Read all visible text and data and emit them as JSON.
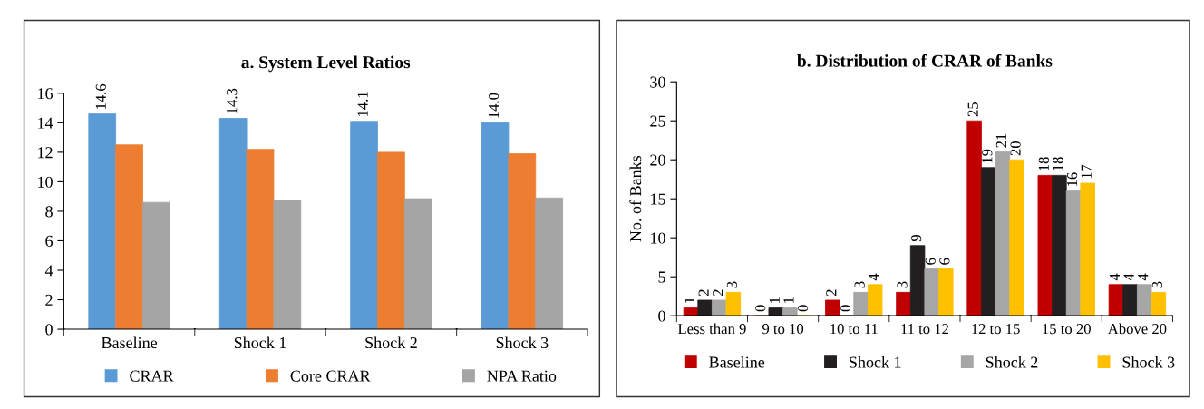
{
  "chart_data": [
    {
      "type": "bar",
      "title": "a. System Level Ratios",
      "categories": [
        "Baseline",
        "Shock 1",
        "Shock 2",
        "Shock 3"
      ],
      "ylim": [
        0,
        16
      ],
      "yticks": [
        0,
        2,
        4,
        6,
        8,
        10,
        12,
        14,
        16
      ],
      "grid": false,
      "legend": "bottom",
      "series": [
        {
          "name": "CRAR",
          "color": "#5b9bd5",
          "values": [
            14.6,
            14.3,
            14.1,
            14.0
          ],
          "value_labels": [
            "14.6",
            "14.3",
            "14.1",
            "14.0"
          ]
        },
        {
          "name": "Core CRAR",
          "color": "#ed7d31",
          "values": [
            12.5,
            12.2,
            12.0,
            11.9
          ]
        },
        {
          "name": "NPA Ratio",
          "color": "#a5a5a5",
          "values": [
            8.6,
            8.75,
            8.85,
            8.9
          ]
        }
      ]
    },
    {
      "type": "bar",
      "title": "b. Distribution of CRAR of Banks",
      "ylabel": "No. of Banks",
      "categories": [
        "Less than 9",
        "9 to 10",
        "10 to 11",
        "11 to 12",
        "12 to 15",
        "15 to 20",
        "Above 20"
      ],
      "ylim": [
        0,
        30
      ],
      "yticks": [
        0,
        5,
        10,
        15,
        20,
        25,
        30
      ],
      "grid": false,
      "legend": "bottom",
      "data_labels": true,
      "series": [
        {
          "name": "Baseline",
          "color": "#c00000",
          "values": [
            1,
            0,
            2,
            3,
            25,
            18,
            4
          ]
        },
        {
          "name": "Shock 1",
          "color": "#231f20",
          "values": [
            2,
            1,
            0,
            9,
            19,
            18,
            4
          ]
        },
        {
          "name": "Shock 2",
          "color": "#a6a6a6",
          "values": [
            2,
            1,
            3,
            6,
            21,
            16,
            4
          ]
        },
        {
          "name": "Shock 3",
          "color": "#ffc000",
          "values": [
            3,
            0,
            4,
            6,
            20,
            17,
            3
          ]
        }
      ]
    }
  ]
}
